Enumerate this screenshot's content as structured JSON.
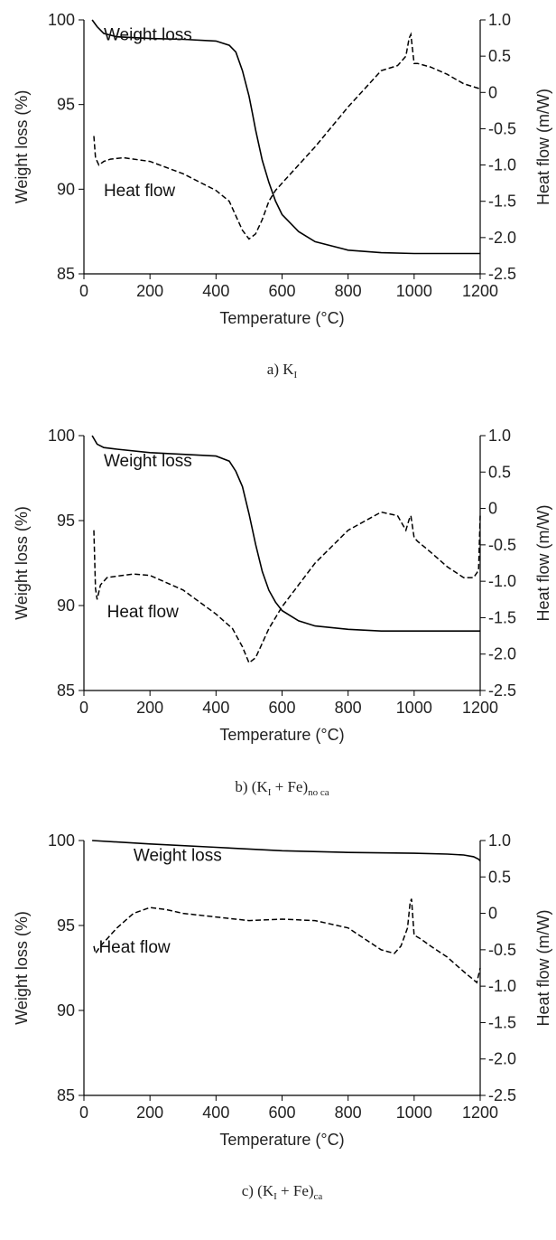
{
  "chart_data": [
    {
      "type": "line",
      "caption": {
        "prefix": "a) K",
        "sub1": "I",
        "rest": "",
        "sub2": ""
      },
      "xlabel": "Temperature (°C)",
      "ylabel": "Weight loss (%)",
      "y2label": "Heat flow (m/W)",
      "xlim": [
        0,
        1200
      ],
      "ylim": [
        85,
        100
      ],
      "y2lim": [
        -2.5,
        1.0
      ],
      "xticks": [
        0,
        200,
        400,
        600,
        800,
        1000,
        1200
      ],
      "yticks": [
        85,
        90,
        95,
        100
      ],
      "y2ticks": [
        -2.5,
        -2.0,
        -1.5,
        -1.0,
        -0.5,
        0,
        0.5,
        1.0
      ],
      "y2ticklabels": [
        "-2.5",
        "-2.0",
        "-1.5",
        "-1.0",
        "-0.5",
        "0",
        "0.5",
        "1.0"
      ],
      "annotations": [
        {
          "text": "Weight loss",
          "x": 60,
          "y": 98.8
        },
        {
          "text": "Heat flow",
          "x": 60,
          "y": 89.6
        }
      ],
      "series": [
        {
          "name": "Weight loss",
          "axis": "left",
          "style": "solid",
          "x": [
            25,
            40,
            60,
            100,
            200,
            300,
            400,
            440,
            460,
            480,
            500,
            510,
            520,
            540,
            560,
            580,
            600,
            650,
            700,
            800,
            900,
            1000,
            1100,
            1200
          ],
          "y": [
            100,
            99.6,
            99.2,
            99.0,
            98.9,
            98.85,
            98.75,
            98.5,
            98.1,
            97.0,
            95.5,
            94.5,
            93.5,
            91.7,
            90.4,
            89.3,
            88.5,
            87.5,
            86.9,
            86.4,
            86.25,
            86.2,
            86.2,
            86.2
          ]
        },
        {
          "name": "Heat flow",
          "axis": "right",
          "style": "dashed",
          "x": [
            30,
            35,
            45,
            60,
            80,
            120,
            200,
            300,
            400,
            440,
            460,
            480,
            500,
            520,
            540,
            560,
            580,
            620,
            700,
            800,
            900,
            950,
            975,
            985,
            990,
            1000,
            1010,
            1050,
            1100,
            1150,
            1200
          ],
          "y": [
            -0.6,
            -0.9,
            -1.0,
            -0.95,
            -0.92,
            -0.9,
            -0.95,
            -1.12,
            -1.35,
            -1.5,
            -1.7,
            -1.9,
            -2.02,
            -1.95,
            -1.75,
            -1.5,
            -1.35,
            -1.15,
            -0.75,
            -0.2,
            0.3,
            0.37,
            0.5,
            0.75,
            0.8,
            0.4,
            0.4,
            0.35,
            0.25,
            0.12,
            0.05
          ]
        }
      ]
    },
    {
      "type": "line",
      "caption": {
        "prefix": "b) (K",
        "sub1": "I",
        "rest": " + Fe)",
        "sub2": "no ca"
      },
      "xlabel": "Temperature (°C)",
      "ylabel": "Weight loss (%)",
      "y2label": "Heat flow (m/W)",
      "xlim": [
        0,
        1200
      ],
      "ylim": [
        85,
        100
      ],
      "y2lim": [
        -2.5,
        1.0
      ],
      "xticks": [
        0,
        200,
        400,
        600,
        800,
        1000,
        1200
      ],
      "yticks": [
        85,
        90,
        95,
        100
      ],
      "y2ticks": [
        -2.5,
        -2.0,
        -1.5,
        -1.0,
        -0.5,
        0,
        0.5,
        1.0
      ],
      "y2ticklabels": [
        "-2.5",
        "-2.0",
        "-1.5",
        "-1.0",
        "-0.5",
        "0",
        "0.5",
        "1.0"
      ],
      "annotations": [
        {
          "text": "Weight loss",
          "x": 60,
          "y": 98.2
        },
        {
          "text": "Heat flow",
          "x": 70,
          "y": 89.3
        }
      ],
      "series": [
        {
          "name": "Weight loss",
          "axis": "left",
          "style": "solid",
          "x": [
            25,
            40,
            60,
            100,
            200,
            300,
            400,
            440,
            460,
            480,
            500,
            520,
            540,
            560,
            580,
            600,
            650,
            700,
            800,
            900,
            1000,
            1100,
            1200
          ],
          "y": [
            100,
            99.5,
            99.3,
            99.2,
            99.0,
            98.9,
            98.8,
            98.5,
            97.9,
            97.0,
            95.4,
            93.6,
            92.0,
            90.9,
            90.2,
            89.7,
            89.1,
            88.8,
            88.6,
            88.5,
            88.5,
            88.5,
            88.5
          ]
        },
        {
          "name": "Heat flow",
          "axis": "right",
          "style": "dashed",
          "x": [
            30,
            35,
            40,
            50,
            70,
            100,
            150,
            200,
            300,
            400,
            450,
            480,
            500,
            520,
            540,
            560,
            600,
            700,
            800,
            900,
            950,
            975,
            985,
            990,
            1000,
            1010,
            1050,
            1100,
            1150,
            1180,
            1195,
            1200
          ],
          "y": [
            -0.3,
            -1.1,
            -1.25,
            -1.05,
            -0.95,
            -0.93,
            -0.9,
            -0.92,
            -1.12,
            -1.45,
            -1.65,
            -1.9,
            -2.12,
            -2.05,
            -1.85,
            -1.65,
            -1.35,
            -0.75,
            -0.3,
            -0.05,
            -0.1,
            -0.3,
            -0.15,
            -0.1,
            -0.4,
            -0.45,
            -0.6,
            -0.8,
            -0.95,
            -0.95,
            -0.85,
            -0.1
          ]
        }
      ]
    },
    {
      "type": "line",
      "caption": {
        "prefix": "c) (K",
        "sub1": "I",
        "rest": " + Fe)",
        "sub2": "ca"
      },
      "xlabel": "Temperature (°C)",
      "ylabel": "Weight loss (%)",
      "y2label": "Heat flow (m/W)",
      "xlim": [
        0,
        1200
      ],
      "ylim": [
        85,
        100
      ],
      "y2lim": [
        -2.5,
        1.0
      ],
      "xticks": [
        0,
        200,
        400,
        600,
        800,
        1000,
        1200
      ],
      "yticks": [
        85,
        90,
        95,
        100
      ],
      "y2ticks": [
        -2.5,
        -2.0,
        -1.5,
        -1.0,
        -0.5,
        0,
        0.5,
        1.0
      ],
      "y2ticklabels": [
        "-2.5",
        "-2.0",
        "-1.5",
        "-1.0",
        "-0.5",
        "0",
        "0.5",
        "1.0"
      ],
      "annotations": [
        {
          "text": "Weight loss",
          "x": 150,
          "y": 98.8
        },
        {
          "text": "Heat flow",
          "x": 45,
          "y": 93.4
        }
      ],
      "series": [
        {
          "name": "Weight loss",
          "axis": "left",
          "style": "solid",
          "x": [
            25,
            200,
            400,
            600,
            800,
            1000,
            1100,
            1150,
            1180,
            1195,
            1200
          ],
          "y": [
            100,
            99.8,
            99.6,
            99.4,
            99.3,
            99.25,
            99.2,
            99.15,
            99.05,
            98.9,
            98.8
          ]
        },
        {
          "name": "Heat flow",
          "axis": "right",
          "style": "dashed",
          "x": [
            30,
            35,
            50,
            100,
            150,
            200,
            250,
            300,
            400,
            500,
            600,
            700,
            800,
            850,
            900,
            940,
            960,
            980,
            988,
            992,
            1000,
            1020,
            1050,
            1100,
            1150,
            1190,
            1200
          ],
          "y": [
            -0.45,
            -0.55,
            -0.45,
            -0.2,
            0,
            0.08,
            0.05,
            0,
            -0.05,
            -0.1,
            -0.08,
            -0.1,
            -0.2,
            -0.35,
            -0.5,
            -0.55,
            -0.45,
            -0.2,
            0.15,
            0.2,
            -0.3,
            -0.35,
            -0.45,
            -0.6,
            -0.8,
            -0.95,
            -0.75
          ]
        }
      ]
    }
  ]
}
